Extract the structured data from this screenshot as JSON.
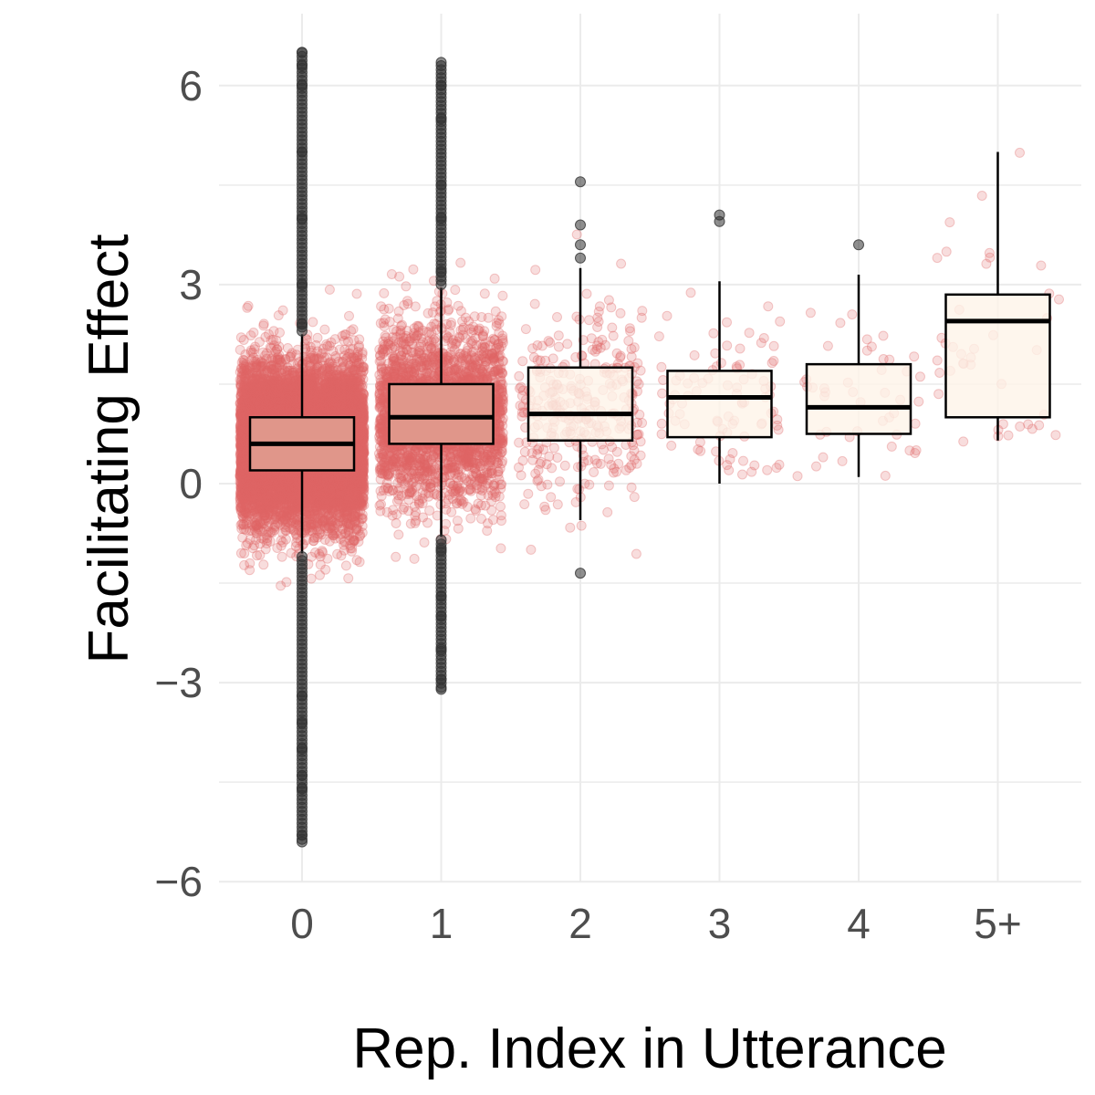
{
  "chart_data": {
    "type": "boxplot",
    "title": "",
    "xlabel": "Rep. Index in Utterance",
    "ylabel": "Facilitating Effect",
    "categories": [
      "0",
      "1",
      "2",
      "3",
      "4",
      "5+"
    ],
    "y_ticks": [
      -6,
      -3,
      0,
      3,
      6
    ],
    "y_tick_labels": [
      "−6",
      "−3",
      "0",
      "3",
      "6"
    ],
    "ylim": [
      -6,
      6.5
    ],
    "grid": true,
    "colors": {
      "jitter_point": "#e06666",
      "outlier_point": "#333333",
      "box_fill_high_density": "#e0968a",
      "box_fill_low_density": "#fef4e8",
      "box_stroke": "#000000",
      "grid": "#ebebeb"
    },
    "boxes": [
      {
        "category": "0",
        "q1": 0.2,
        "median": 0.6,
        "q3": 1.0,
        "whisker_low": -1.05,
        "whisker_high": 2.25,
        "fill": "high",
        "outliers": [
          -5.4,
          -5.3,
          -4.6,
          -4.4,
          -4.0,
          -3.6,
          -3.2,
          2.4,
          3.0,
          4.0,
          5.0,
          6.0,
          6.3,
          6.5
        ],
        "points": 9000,
        "jitter_range": [
          -5.4,
          6.5
        ]
      },
      {
        "category": "1",
        "q1": 0.6,
        "median": 1.0,
        "q3": 1.5,
        "whisker_low": -0.8,
        "whisker_high": 2.95,
        "fill": "high",
        "outliers": [
          -3.1,
          -2.95,
          -2.5,
          -2.0,
          -1.7,
          -1.0,
          3.2,
          4.0,
          4.5,
          5.5,
          6.0,
          6.35
        ],
        "points": 2600,
        "jitter_range": [
          -3.1,
          6.35
        ]
      },
      {
        "category": "2",
        "q1": 0.65,
        "median": 1.05,
        "q3": 1.75,
        "whisker_low": -0.55,
        "whisker_high": 3.25,
        "fill": "low",
        "outliers": [
          -1.35,
          3.4,
          3.6,
          3.9,
          4.55
        ],
        "points": 320,
        "jitter_range": [
          -1.35,
          4.55
        ]
      },
      {
        "category": "3",
        "q1": 0.7,
        "median": 1.3,
        "q3": 1.7,
        "whisker_low": 0.0,
        "whisker_high": 3.05,
        "fill": "low",
        "outliers": [
          3.95,
          4.05
        ],
        "points": 90,
        "jitter_range": [
          0.0,
          4.05
        ]
      },
      {
        "category": "4",
        "q1": 0.75,
        "median": 1.15,
        "q3": 1.8,
        "whisker_low": 0.1,
        "whisker_high": 3.15,
        "fill": "low",
        "outliers": [
          3.6
        ],
        "points": 45,
        "jitter_range": [
          0.1,
          3.6
        ]
      },
      {
        "category": "5+",
        "q1": 1.0,
        "median": 2.45,
        "q3": 2.85,
        "whisker_low": 0.65,
        "whisker_high": 5.0,
        "fill": "low",
        "outliers": [],
        "points": 40,
        "jitter_range": [
          0.6,
          5.05
        ]
      }
    ]
  }
}
